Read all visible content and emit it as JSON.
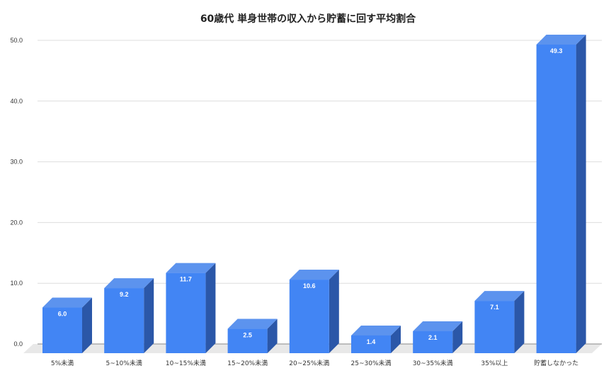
{
  "chart_data": {
    "type": "bar",
    "title": "60歳代 単身世帯の収入から貯蓄に回す平均割合",
    "xlabel": "",
    "ylabel": "",
    "ylim": [
      0,
      50
    ],
    "y_ticks": [
      "0.0",
      "10.0",
      "20.0",
      "30.0",
      "40.0",
      "50.0"
    ],
    "grid": true,
    "legend": "none",
    "style": "3d-bar",
    "categories": [
      "5%未満",
      "5~10%未満",
      "10~15%未満",
      "15~20%未満",
      "20~25%未満",
      "25~30%未満",
      "30~35%未満",
      "35%以上",
      "貯蓄しなかった"
    ],
    "values": [
      6.0,
      9.2,
      11.7,
      2.5,
      10.6,
      1.4,
      2.1,
      7.1,
      49.3
    ],
    "value_labels": [
      "6.0",
      "9.2",
      "11.7",
      "2.5",
      "10.6",
      "1.4",
      "2.1",
      "7.1",
      "49.3"
    ],
    "colors": {
      "front": "#4285f4",
      "side": "#2b57a8",
      "top": "#5c93ee",
      "floor": "#e8e8e8",
      "grid": "#dddddd"
    }
  }
}
